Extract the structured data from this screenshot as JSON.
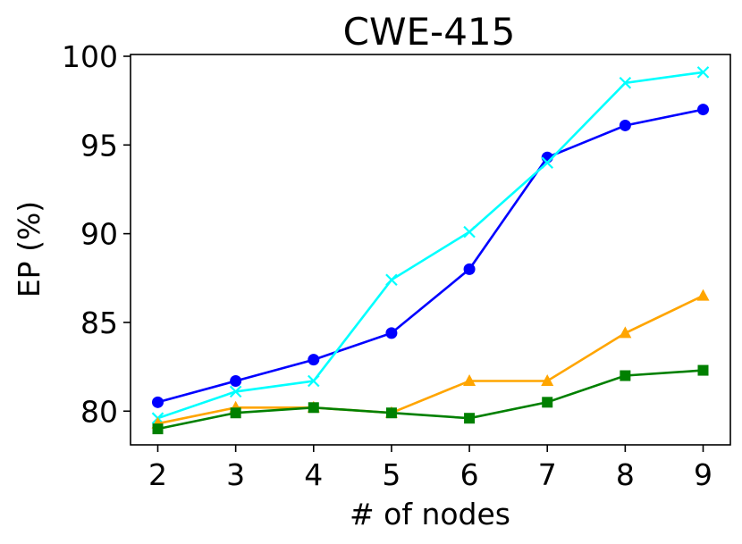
{
  "chart_data": {
    "type": "line",
    "title": "CWE-415",
    "xlabel": "# of nodes",
    "ylabel": "EP (%)",
    "x": [
      2,
      3,
      4,
      5,
      6,
      7,
      8,
      9
    ],
    "xlim": [
      1.65,
      9.35
    ],
    "ylim": [
      78.1,
      100.1
    ],
    "xticks": [
      "2",
      "3",
      "4",
      "5",
      "6",
      "7",
      "8",
      "9"
    ],
    "yticks": [
      "80",
      "85",
      "90",
      "95",
      "100"
    ],
    "grid": false,
    "legend": "none",
    "series": [
      {
        "color": "#0000ff",
        "marker": "circle",
        "values": [
          80.5,
          81.7,
          82.9,
          84.4,
          88.0,
          94.3,
          96.1,
          97.0
        ]
      },
      {
        "color": "#00ffff",
        "marker": "x",
        "values": [
          79.6,
          81.1,
          81.7,
          87.4,
          90.1,
          94.0,
          98.5,
          99.1
        ]
      },
      {
        "color": "#ffa500",
        "marker": "triangle",
        "values": [
          79.3,
          80.2,
          80.2,
          79.9,
          81.7,
          81.7,
          84.4,
          86.5
        ]
      },
      {
        "color": "#008000",
        "marker": "square",
        "values": [
          79.0,
          79.9,
          80.2,
          79.9,
          79.6,
          80.5,
          82.0,
          82.3
        ]
      }
    ]
  }
}
